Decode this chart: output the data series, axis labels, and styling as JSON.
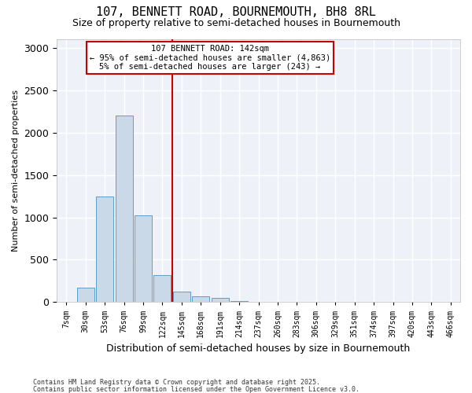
{
  "title": "107, BENNETT ROAD, BOURNEMOUTH, BH8 8RL",
  "subtitle": "Size of property relative to semi-detached houses in Bournemouth",
  "xlabel": "Distribution of semi-detached houses by size in Bournemouth",
  "ylabel": "Number of semi-detached properties",
  "bar_color": "#c9d9e8",
  "bar_edge_color": "#5a9ec8",
  "background_color": "#eef2f8",
  "grid_color": "white",
  "bin_labels": [
    "7sqm",
    "30sqm",
    "53sqm",
    "76sqm",
    "99sqm",
    "122sqm",
    "145sqm",
    "168sqm",
    "191sqm",
    "214sqm",
    "237sqm",
    "260sqm",
    "283sqm",
    "306sqm",
    "329sqm",
    "351sqm",
    "374sqm",
    "397sqm",
    "420sqm",
    "443sqm",
    "466sqm"
  ],
  "bar_values": [
    5,
    170,
    1250,
    2200,
    1020,
    320,
    120,
    65,
    50,
    10,
    5,
    3,
    2,
    1,
    1,
    0,
    0,
    0,
    0,
    0,
    0
  ],
  "property_label": "107 BENNETT ROAD: 142sqm",
  "annotation_line1": "← 95% of semi-detached houses are smaller (4,863)",
  "annotation_line2": "5% of semi-detached houses are larger (243) →",
  "vline_color": "#cc0000",
  "annotation_box_edge": "#cc0000",
  "footer1": "Contains HM Land Registry data © Crown copyright and database right 2025.",
  "footer2": "Contains public sector information licensed under the Open Government Licence v3.0.",
  "ylim": [
    0,
    3100
  ],
  "vline_x": 5.5,
  "yticks": [
    0,
    500,
    1000,
    1500,
    2000,
    2500,
    3000
  ]
}
